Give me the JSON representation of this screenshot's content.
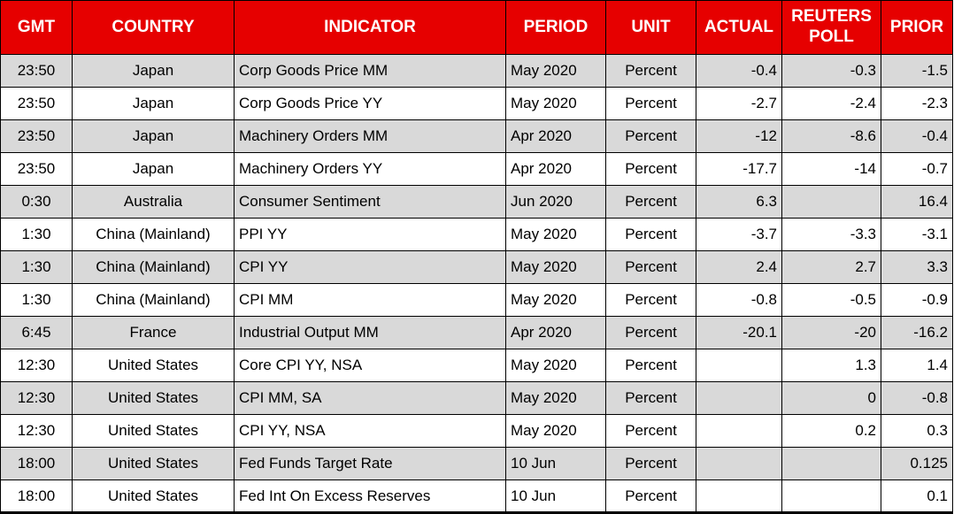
{
  "colors": {
    "header_bg": "#e60000",
    "header_text": "#ffffff",
    "row_bg": "#ffffff",
    "row_alt_bg": "#d9d9d9",
    "border_color": "#000000",
    "text_color": "#000000"
  },
  "table": {
    "columns": [
      {
        "key": "gmt",
        "label": "GMT"
      },
      {
        "key": "country",
        "label": "COUNTRY"
      },
      {
        "key": "indicator",
        "label": "INDICATOR"
      },
      {
        "key": "period",
        "label": "PERIOD"
      },
      {
        "key": "unit",
        "label": "UNIT"
      },
      {
        "key": "actual",
        "label": "ACTUAL"
      },
      {
        "key": "poll",
        "label": "REUTERS POLL"
      },
      {
        "key": "prior",
        "label": "PRIOR"
      }
    ],
    "rows": [
      {
        "gmt": "23:50",
        "country": "Japan",
        "indicator": "Corp Goods Price MM",
        "period": "May 2020",
        "unit": "Percent",
        "actual": "-0.4",
        "poll": "-0.3",
        "prior": "-1.5"
      },
      {
        "gmt": "23:50",
        "country": "Japan",
        "indicator": "Corp Goods Price YY",
        "period": "May 2020",
        "unit": "Percent",
        "actual": "-2.7",
        "poll": "-2.4",
        "prior": "-2.3"
      },
      {
        "gmt": "23:50",
        "country": "Japan",
        "indicator": "Machinery Orders MM",
        "period": "Apr 2020",
        "unit": "Percent",
        "actual": "-12",
        "poll": "-8.6",
        "prior": "-0.4"
      },
      {
        "gmt": "23:50",
        "country": "Japan",
        "indicator": "Machinery Orders YY",
        "period": "Apr 2020",
        "unit": "Percent",
        "actual": "-17.7",
        "poll": "-14",
        "prior": "-0.7"
      },
      {
        "gmt": "0:30",
        "country": "Australia",
        "indicator": "Consumer Sentiment",
        "period": "Jun 2020",
        "unit": "Percent",
        "actual": "6.3",
        "poll": "",
        "prior": "16.4"
      },
      {
        "gmt": "1:30",
        "country": "China (Mainland)",
        "indicator": "PPI YY",
        "period": "May 2020",
        "unit": "Percent",
        "actual": "-3.7",
        "poll": "-3.3",
        "prior": "-3.1"
      },
      {
        "gmt": "1:30",
        "country": "China (Mainland)",
        "indicator": "CPI YY",
        "period": "May 2020",
        "unit": "Percent",
        "actual": "2.4",
        "poll": "2.7",
        "prior": "3.3"
      },
      {
        "gmt": "1:30",
        "country": "China (Mainland)",
        "indicator": "CPI MM",
        "period": "May 2020",
        "unit": "Percent",
        "actual": "-0.8",
        "poll": "-0.5",
        "prior": "-0.9"
      },
      {
        "gmt": "6:45",
        "country": "France",
        "indicator": "Industrial Output MM",
        "period": "Apr 2020",
        "unit": "Percent",
        "actual": "-20.1",
        "poll": "-20",
        "prior": "-16.2"
      },
      {
        "gmt": "12:30",
        "country": "United States",
        "indicator": "Core CPI YY, NSA",
        "period": "May 2020",
        "unit": "Percent",
        "actual": "",
        "poll": "1.3",
        "prior": "1.4"
      },
      {
        "gmt": "12:30",
        "country": "United States",
        "indicator": "CPI MM, SA",
        "period": "May 2020",
        "unit": "Percent",
        "actual": "",
        "poll": "0",
        "prior": "-0.8"
      },
      {
        "gmt": "12:30",
        "country": "United States",
        "indicator": "CPI YY, NSA",
        "period": "May 2020",
        "unit": "Percent",
        "actual": "",
        "poll": "0.2",
        "prior": "0.3"
      },
      {
        "gmt": "18:00",
        "country": "United States",
        "indicator": "Fed Funds Target Rate",
        "period": "10 Jun",
        "unit": "Percent",
        "actual": "",
        "poll": "",
        "prior": "0.125"
      },
      {
        "gmt": "18:00",
        "country": "United States",
        "indicator": "Fed Int On Excess Reserves",
        "period": "10 Jun",
        "unit": "Percent",
        "actual": "",
        "poll": "",
        "prior": "0.1"
      }
    ]
  }
}
